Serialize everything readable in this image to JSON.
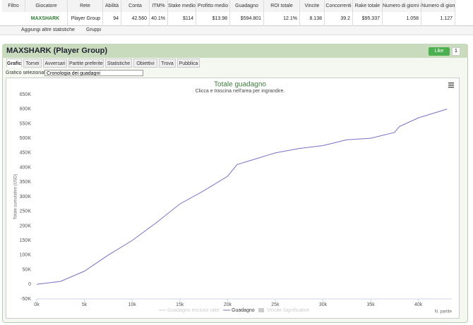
{
  "table": {
    "headers": [
      "Filtro",
      "Giocatore",
      "Rete",
      "Abilità",
      "Conta",
      "ITM%",
      "Stake medio",
      "Profitto medio",
      "Guadagno",
      "ROI totale",
      "Vincite",
      "Concorrenti",
      "Rake totale",
      "Numero di giorni c",
      "Numero di giorni"
    ],
    "row": [
      "MAXSHARK",
      "Player Group",
      "94",
      "42.560",
      "40.1%",
      "$114",
      "$13.98",
      "$594.801",
      "12.1%",
      "8.138",
      "39.2",
      "$95.337",
      "1.058",
      "1.127"
    ]
  },
  "toolbar": {
    "add_stats": "Aggiungi altre statistiche",
    "groups": "Gruppi"
  },
  "panel": {
    "title": "MAXSHARK (Player Group)",
    "like": "Like",
    "like_count": "1",
    "tabs": [
      "Grafici",
      "Tornei",
      "Avversari",
      "Partite preferite",
      "Statistiche",
      "Obiettivi",
      "Trova",
      "Pubblica"
    ],
    "select_label": "Grafico selezionato",
    "select_value": "Cronologia dei guadagni"
  },
  "chart_data": {
    "type": "line",
    "title": "Totale guadagno",
    "subtitle": "Clicca e trascina nell'area per ingrandire.",
    "y_label": "Totale cumulativo (USD)",
    "x_label": "N. partite",
    "x": [
      0,
      2500,
      5000,
      7500,
      10000,
      12500,
      15000,
      17500,
      20000,
      21000,
      22500,
      25000,
      27500,
      30000,
      32500,
      35000,
      37500,
      38000,
      40000,
      42000,
      43000
    ],
    "series": [
      {
        "name": "Guadagno",
        "color": "#7b6fc4",
        "values": [
          0,
          10000,
          45000,
          100000,
          150000,
          210000,
          275000,
          320000,
          370000,
          410000,
          425000,
          450000,
          465000,
          475000,
          495000,
          500000,
          520000,
          540000,
          570000,
          590000,
          600000
        ]
      }
    ],
    "legend_extra": [
      {
        "name": "Guadagno escluso rake",
        "color": "#cccccc"
      },
      {
        "name": "Vincite Significative",
        "color": "#cccccc"
      }
    ],
    "xlim": [
      0,
      43500
    ],
    "ylim": [
      -50000,
      650000
    ],
    "xticks": [
      {
        "value": 0,
        "label": "0k"
      },
      {
        "value": 5000,
        "label": "5k"
      },
      {
        "value": 10000,
        "label": "10k"
      },
      {
        "value": 15000,
        "label": "15k"
      },
      {
        "value": 20000,
        "label": "20k"
      },
      {
        "value": 25000,
        "label": "25k"
      },
      {
        "value": 30000,
        "label": "30k"
      },
      {
        "value": 35000,
        "label": "35k"
      },
      {
        "value": 40000,
        "label": "40k"
      }
    ],
    "yticks": [
      {
        "value": -50000,
        "label": "-50K"
      },
      {
        "value": 0,
        "label": "0"
      },
      {
        "value": 50000,
        "label": "50K"
      },
      {
        "value": 100000,
        "label": "100K"
      },
      {
        "value": 150000,
        "label": "150K"
      },
      {
        "value": 200000,
        "label": "200K"
      },
      {
        "value": 250000,
        "label": "250K"
      },
      {
        "value": 300000,
        "label": "300K"
      },
      {
        "value": 350000,
        "label": "350K"
      },
      {
        "value": 400000,
        "label": "400K"
      },
      {
        "value": 450000,
        "label": "450K"
      },
      {
        "value": 500000,
        "label": "500K"
      },
      {
        "value": 550000,
        "label": "550K"
      },
      {
        "value": 600000,
        "label": "600K"
      },
      {
        "value": 650000,
        "label": "650K"
      }
    ],
    "grid": false
  }
}
